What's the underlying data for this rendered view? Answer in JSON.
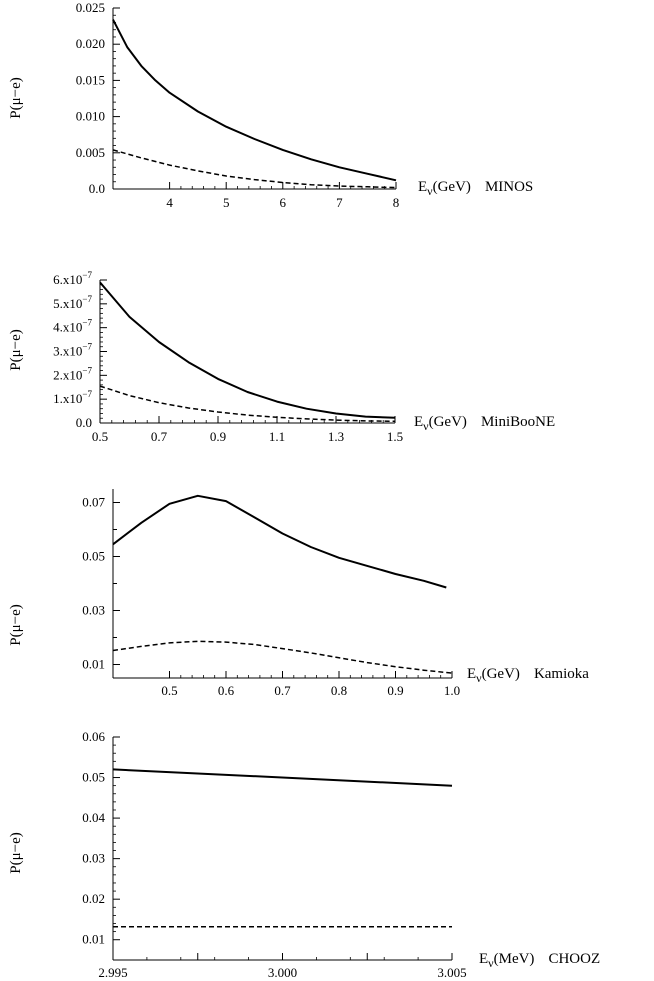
{
  "figure": {
    "ylabel": "P(μ−e)"
  },
  "chart_data": [
    {
      "type": "line",
      "experiment": "MINOS",
      "ylabel": "P(μ−e)",
      "xlabel_main": "E",
      "xlabel_sub": "ν",
      "xlabel_unit": "(GeV)",
      "xlim": [
        3,
        8
      ],
      "ylim": [
        0,
        0.025
      ],
      "xticks": [
        4,
        5,
        6,
        7,
        8
      ],
      "xtick_labels": [
        "4",
        "5",
        "6",
        "7",
        "8"
      ],
      "yticks": [
        0,
        0.005,
        0.01,
        0.015,
        0.02,
        0.025
      ],
      "ytick_labels": [
        "0.0",
        "0.005",
        "0.010",
        "0.015",
        "0.020",
        "0.025"
      ],
      "series": [
        {
          "name": "solid",
          "style": "solid",
          "x": [
            3.0,
            3.25,
            3.5,
            3.75,
            4.0,
            4.5,
            5.0,
            5.5,
            6.0,
            6.5,
            7.0,
            7.5,
            8.0
          ],
          "y": [
            0.0234,
            0.0196,
            0.017,
            0.015,
            0.0133,
            0.0107,
            0.0086,
            0.0069,
            0.0054,
            0.0041,
            0.003,
            0.0021,
            0.0012
          ]
        },
        {
          "name": "dashed",
          "style": "dashed",
          "x": [
            3.0,
            3.5,
            4.0,
            4.5,
            5.0,
            5.5,
            6.0,
            6.5,
            7.0,
            7.5,
            8.0
          ],
          "y": [
            0.0054,
            0.0043,
            0.0033,
            0.0025,
            0.0018,
            0.0013,
            0.0009,
            0.0006,
            0.0004,
            0.0003,
            0.0002
          ]
        }
      ]
    },
    {
      "type": "line",
      "experiment": "MiniBooNE",
      "ylabel": "P(μ−e)",
      "xlabel_main": "E",
      "xlabel_sub": "ν",
      "xlabel_unit": "(GeV)",
      "xlim": [
        0.5,
        1.5
      ],
      "ylim": [
        0,
        6e-07
      ],
      "xticks": [
        0.5,
        0.7,
        0.9,
        1.1,
        1.3,
        1.5
      ],
      "xtick_labels": [
        "0.5",
        "0.7",
        "0.9",
        "1.1",
        "1.3",
        "1.5"
      ],
      "yticks": [
        0,
        1e-07,
        2e-07,
        3e-07,
        4e-07,
        5e-07,
        6e-07
      ],
      "ytick_labels": [
        "0.0",
        "1.x10",
        "2.x10",
        "3.x10",
        "4.x10",
        "5.x10",
        "6.x10"
      ],
      "ytick_exponent": "−7",
      "series": [
        {
          "name": "solid",
          "style": "solid",
          "x": [
            0.5,
            0.6,
            0.7,
            0.8,
            0.9,
            1.0,
            1.1,
            1.2,
            1.3,
            1.4,
            1.5
          ],
          "y": [
            5.9e-07,
            4.45e-07,
            3.4e-07,
            2.55e-07,
            1.85e-07,
            1.3e-07,
            9e-08,
            6e-08,
            4e-08,
            2.7e-08,
            2.2e-08
          ]
        },
        {
          "name": "dashed",
          "style": "dashed",
          "x": [
            0.5,
            0.6,
            0.7,
            0.8,
            0.9,
            1.0,
            1.1,
            1.2,
            1.3,
            1.4,
            1.5
          ],
          "y": [
            1.55e-07,
            1.15e-07,
            8.5e-08,
            6.3e-08,
            4.6e-08,
            3.3e-08,
            2.4e-08,
            1.7e-08,
            1.2e-08,
            9e-09,
            7e-09
          ]
        }
      ]
    },
    {
      "type": "line",
      "experiment": "Kamioka",
      "ylabel": "P(μ−e)",
      "xlabel_main": "E",
      "xlabel_sub": "ν",
      "xlabel_unit": "(GeV)",
      "xlim": [
        0.4,
        1.0
      ],
      "ylim": [
        0.005,
        0.075
      ],
      "xticks": [
        0.5,
        0.6,
        0.7,
        0.8,
        0.9,
        1.0
      ],
      "xtick_labels": [
        "0.5",
        "0.6",
        "0.7",
        "0.8",
        "0.9",
        "1.0"
      ],
      "yticks": [
        0.01,
        0.03,
        0.05,
        0.07
      ],
      "ytick_labels": [
        "0.01",
        "0.03",
        "0.05",
        "0.07"
      ],
      "yminor": [
        0.02,
        0.04,
        0.06
      ],
      "series": [
        {
          "name": "solid",
          "style": "solid",
          "x": [
            0.4,
            0.45,
            0.5,
            0.55,
            0.6,
            0.65,
            0.7,
            0.75,
            0.8,
            0.85,
            0.9,
            0.95,
            0.99
          ],
          "y": [
            0.0545,
            0.0625,
            0.0695,
            0.0725,
            0.0705,
            0.0645,
            0.0585,
            0.0535,
            0.0495,
            0.0465,
            0.0435,
            0.041,
            0.0385
          ]
        },
        {
          "name": "dashed",
          "style": "dashed",
          "x": [
            0.4,
            0.45,
            0.5,
            0.55,
            0.6,
            0.65,
            0.7,
            0.75,
            0.8,
            0.85,
            0.9,
            0.95,
            1.0
          ],
          "y": [
            0.0152,
            0.0167,
            0.018,
            0.0186,
            0.0183,
            0.0174,
            0.0159,
            0.0143,
            0.0125,
            0.0107,
            0.0092,
            0.0079,
            0.0068
          ]
        }
      ]
    },
    {
      "type": "line",
      "experiment": "CHOOZ",
      "ylabel": "P(μ−e)",
      "xlabel_main": "E",
      "xlabel_sub": "ν",
      "xlabel_unit": "(MeV)",
      "xlim": [
        2.995,
        3.005
      ],
      "ylim": [
        0.005,
        0.06
      ],
      "xticks": [
        2.995,
        3.0,
        3.005
      ],
      "xtick_labels": [
        "2.995",
        "3.000",
        "3.005"
      ],
      "xminor": [
        2.9975,
        3.0025
      ],
      "yticks": [
        0.01,
        0.02,
        0.03,
        0.04,
        0.05,
        0.06
      ],
      "ytick_labels": [
        "0.01",
        "0.02",
        "0.03",
        "0.04",
        "0.05",
        "0.06"
      ],
      "series": [
        {
          "name": "solid",
          "style": "solid",
          "x": [
            2.995,
            3.005
          ],
          "y": [
            0.052,
            0.048
          ]
        },
        {
          "name": "dashed",
          "style": "dashed",
          "x": [
            2.995,
            3.005
          ],
          "y": [
            0.0132,
            0.0132
          ]
        }
      ]
    }
  ]
}
